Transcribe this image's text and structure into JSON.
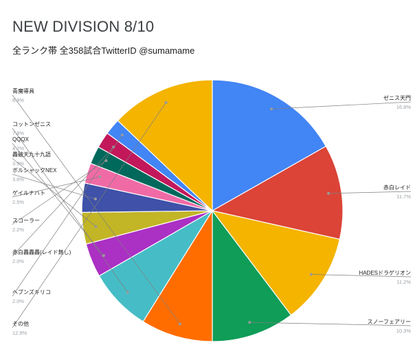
{
  "chart_data": {
    "type": "pie",
    "title": "NEW DIVISION 8/10",
    "subtitle": "全ランク帯 全358試合TwitterID @sumamame",
    "slices": [
      {
        "label": "ゼニス天門",
        "pct_label": "16.8%",
        "value": 16.8,
        "color": "#4285f4"
      },
      {
        "label": "赤白レイド",
        "pct_label": "11.7%",
        "value": 11.7,
        "color": "#db4437"
      },
      {
        "label": "HADESドラゲリオン",
        "pct_label": "11.2%",
        "value": 11.2,
        "color": "#f4b400"
      },
      {
        "label": "スノーフェアリー",
        "pct_label": "10.3%",
        "value": 10.3,
        "color": "#0f9d58"
      },
      {
        "label": "青魔導具",
        "pct_label": "8.9%",
        "value": 8.9,
        "color": "#ff6d01"
      },
      {
        "label": "コットンゼニス",
        "pct_label": "7.8%",
        "value": 7.8,
        "color": "#46bdc6"
      },
      {
        "label": "QQQX",
        "pct_label": "4.2%",
        "value": 4.2,
        "color": "#ab30c4"
      },
      {
        "label": "轟破天九十九語",
        "pct_label": "3.9%",
        "value": 3.9,
        "color": "#c2b526"
      },
      {
        "label": "ボルシャックNEX",
        "pct_label": "3.6%",
        "value": 3.6,
        "color": "#3f51a8"
      },
      {
        "label": "ゲイルナハト",
        "pct_label": "2.5%",
        "value": 2.5,
        "color": "#f06ba6"
      },
      {
        "label": "スコーラー",
        "pct_label": "2.2%",
        "value": 2.2,
        "color": "#00695c"
      },
      {
        "label": "赤白轟轟轟(レイド無し)",
        "pct_label": "2.0%",
        "value": 2.0,
        "color": "#c2185b"
      },
      {
        "label": "ヘブンズキリコ",
        "pct_label": "2.0%",
        "value": 2.0,
        "color": "#4285f4"
      },
      {
        "label": "その他",
        "pct_label": "12.9%",
        "value": 12.9,
        "color": "#f4b400"
      }
    ]
  }
}
